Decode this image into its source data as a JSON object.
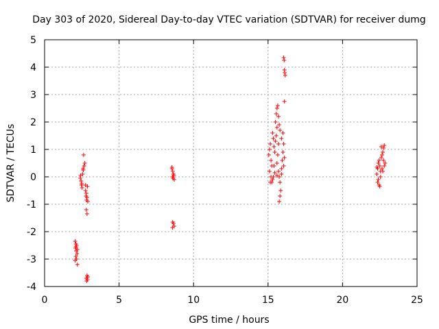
{
  "chart_data": {
    "type": "scatter",
    "title": "Day 303 of 2020, Sidereal Day-to-day VTEC variation (SDTVAR) for receiver dumg",
    "xlabel": "GPS time / hours",
    "ylabel": "SDTVAR / TECUs",
    "xlim": [
      0,
      25
    ],
    "ylim": [
      -4,
      5
    ],
    "xticks": [
      0,
      5,
      10,
      15,
      20,
      25
    ],
    "yticks": [
      -4,
      -3,
      -2,
      -1,
      0,
      1,
      2,
      3,
      4,
      5
    ],
    "xtick_labels": [
      "0",
      "5",
      "10",
      "15",
      "20",
      "25"
    ],
    "ytick_labels": [
      "-4",
      "-3",
      "-2",
      "-1",
      "0",
      "1",
      "2",
      "3",
      "4",
      "5"
    ],
    "grid": true,
    "marker": "+",
    "marker_color": "#ff0000",
    "series": [
      {
        "name": "SDTVAR",
        "points": [
          [
            2.05,
            -2.35
          ],
          [
            2.1,
            -2.45
          ],
          [
            2.15,
            -2.5
          ],
          [
            2.08,
            -2.6
          ],
          [
            2.12,
            -2.7
          ],
          [
            2.18,
            -2.8
          ],
          [
            2.1,
            -2.9
          ],
          [
            2.15,
            -3.0
          ],
          [
            2.05,
            -3.05
          ],
          [
            2.2,
            -3.2
          ],
          [
            2.1,
            -2.55
          ],
          [
            2.2,
            -2.65
          ],
          [
            2.4,
            -0.05
          ],
          [
            2.45,
            -0.15
          ],
          [
            2.5,
            -0.25
          ],
          [
            2.42,
            0.05
          ],
          [
            2.55,
            0.1
          ],
          [
            2.48,
            -0.3
          ],
          [
            2.52,
            -0.4
          ],
          [
            2.6,
            0.25
          ],
          [
            2.65,
            0.4
          ],
          [
            2.7,
            0.5
          ],
          [
            2.62,
            0.8
          ],
          [
            2.58,
            0.3
          ],
          [
            2.75,
            -0.3
          ],
          [
            2.8,
            -0.6
          ],
          [
            2.78,
            -0.7
          ],
          [
            2.85,
            -0.75
          ],
          [
            2.82,
            -0.85
          ],
          [
            2.9,
            -0.9
          ],
          [
            2.8,
            -1.2
          ],
          [
            2.85,
            -1.35
          ],
          [
            2.75,
            -0.5
          ],
          [
            2.88,
            -0.35
          ],
          [
            2.85,
            -3.6
          ],
          [
            2.9,
            -3.65
          ],
          [
            2.8,
            -3.7
          ],
          [
            2.88,
            -3.75
          ],
          [
            2.82,
            -3.8
          ],
          [
            8.55,
            0.3
          ],
          [
            8.6,
            0.2
          ],
          [
            8.65,
            0.1
          ],
          [
            8.58,
            0.0
          ],
          [
            8.62,
            -0.05
          ],
          [
            8.7,
            -0.1
          ],
          [
            8.55,
            0.35
          ],
          [
            8.68,
            0.05
          ],
          [
            8.6,
            -1.65
          ],
          [
            8.65,
            -1.7
          ],
          [
            8.7,
            -1.8
          ],
          [
            8.58,
            -1.85
          ],
          [
            15.05,
            0.8
          ],
          [
            15.1,
            1.0
          ],
          [
            15.15,
            1.2
          ],
          [
            15.2,
            0.6
          ],
          [
            15.25,
            0.4
          ],
          [
            15.1,
            0.2
          ],
          [
            15.2,
            0.0
          ],
          [
            15.3,
            -0.1
          ],
          [
            15.15,
            -0.2
          ],
          [
            15.35,
            1.4
          ],
          [
            15.4,
            1.1
          ],
          [
            15.45,
            0.9
          ],
          [
            15.3,
            1.6
          ],
          [
            15.5,
            1.3
          ],
          [
            15.55,
            1.5
          ],
          [
            15.6,
            1.8
          ],
          [
            15.5,
            2.0
          ],
          [
            15.55,
            2.3
          ],
          [
            15.6,
            2.5
          ],
          [
            15.65,
            2.6
          ],
          [
            15.7,
            2.2
          ],
          [
            15.75,
            1.9
          ],
          [
            15.8,
            1.7
          ],
          [
            15.7,
            1.2
          ],
          [
            15.65,
            0.8
          ],
          [
            15.6,
            0.5
          ],
          [
            15.7,
            0.2
          ],
          [
            15.75,
            0.0
          ],
          [
            15.8,
            -0.2
          ],
          [
            15.85,
            -0.5
          ],
          [
            15.8,
            -0.7
          ],
          [
            15.75,
            -0.9
          ],
          [
            15.9,
            0.3
          ],
          [
            15.95,
            0.6
          ],
          [
            16.0,
            0.9
          ],
          [
            16.05,
            1.2
          ],
          [
            15.9,
            1.4
          ],
          [
            16.0,
            1.6
          ],
          [
            16.1,
            0.7
          ],
          [
            15.4,
            0.4
          ],
          [
            15.35,
            0.0
          ],
          [
            15.25,
            -0.2
          ],
          [
            15.45,
            0.15
          ],
          [
            15.6,
            0.05
          ],
          [
            15.9,
            0.1
          ],
          [
            16.05,
            0.4
          ],
          [
            16.1,
            2.75
          ],
          [
            16.05,
            4.35
          ],
          [
            16.08,
            4.25
          ],
          [
            16.1,
            3.9
          ],
          [
            16.12,
            3.8
          ],
          [
            16.15,
            3.7
          ],
          [
            22.3,
            0.1
          ],
          [
            22.35,
            0.3
          ],
          [
            22.4,
            0.5
          ],
          [
            22.45,
            0.6
          ],
          [
            22.5,
            0.4
          ],
          [
            22.55,
            0.2
          ],
          [
            22.4,
            -0.1
          ],
          [
            22.45,
            -0.3
          ],
          [
            22.35,
            -0.2
          ],
          [
            22.6,
            0.7
          ],
          [
            22.65,
            0.8
          ],
          [
            22.7,
            0.9
          ],
          [
            22.75,
            1.05
          ],
          [
            22.6,
            1.1
          ],
          [
            22.8,
            1.15
          ],
          [
            22.75,
            0.6
          ],
          [
            22.8,
            0.4
          ],
          [
            22.7,
            0.2
          ],
          [
            22.85,
            0.5
          ],
          [
            22.5,
            -0.35
          ],
          [
            22.55,
            0.0
          ],
          [
            22.3,
            0.35
          ],
          [
            22.65,
            0.3
          ]
        ]
      }
    ]
  }
}
